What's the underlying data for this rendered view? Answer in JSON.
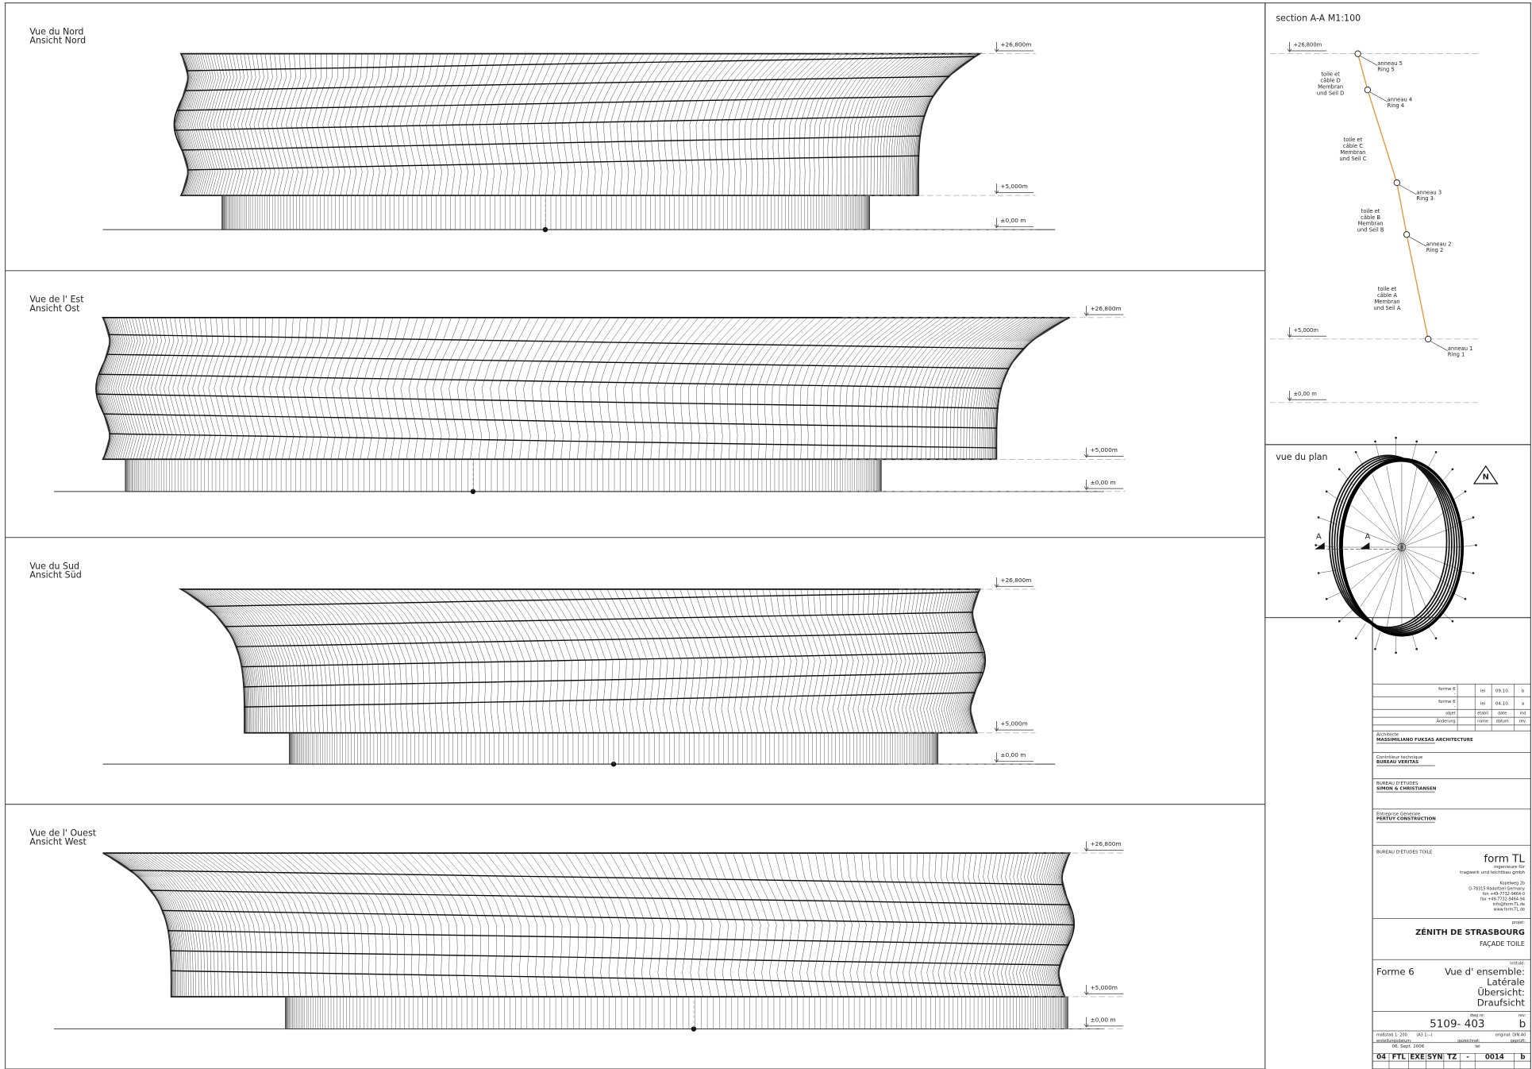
{
  "views": [
    {
      "title_fr": "Vue du Nord",
      "title_de": "Ansicht Nord",
      "levels": [
        "+26,800m",
        "+5,000m",
        "±0,00 m"
      ]
    },
    {
      "title_fr": "Vue de l' Est",
      "title_de": "Ansicht Ost",
      "levels": [
        "+26,800m",
        "+5,000m",
        "±0,00 m"
      ]
    },
    {
      "title_fr": "Vue du Sud",
      "title_de": "Ansicht Süd",
      "levels": [
        "+26,800m",
        "+5,000m",
        "±0,00 m"
      ]
    },
    {
      "title_fr": "Vue de l' Ouest",
      "title_de": "Ansicht West",
      "levels": [
        "+26,800m",
        "+5,000m",
        "±0,00 m"
      ]
    }
  ],
  "section": {
    "title": "section A-A M1:100",
    "levels": [
      "+26,800m",
      "+5,000m",
      "±0,00 m"
    ],
    "rings": [
      {
        "fr": "anneau 5",
        "de": "Ring 5"
      },
      {
        "fr": "anneau 4",
        "de": "Ring 4"
      },
      {
        "fr": "anneau 3",
        "de": "Ring 3"
      },
      {
        "fr": "anneau 2",
        "de": "Ring 2"
      },
      {
        "fr": "anneau 1",
        "de": "Ring 1"
      }
    ],
    "membranes": [
      [
        "toile et",
        "câble D",
        "Membran",
        "und Seil D"
      ],
      [
        "toile et",
        "câble C",
        "Membran",
        "und Seil C"
      ],
      [
        "toile et",
        "câble B",
        "Membran",
        "und Seil B"
      ],
      [
        "toile et",
        "câble A",
        "Membran",
        "und Seil A"
      ]
    ]
  },
  "plan": {
    "title": "vue du plan",
    "section_marks": [
      "A",
      "A"
    ],
    "north": "N"
  },
  "title_block": {
    "revisions": [
      [
        "forme 6",
        "-",
        "lei",
        "09.10.",
        "b"
      ],
      [
        "forme 6",
        "-",
        "lei",
        "04.10.",
        "a"
      ]
    ],
    "revision_headers": [
      [
        "objet",
        "établi",
        "date",
        "ind"
      ],
      [
        "Änderung",
        "name",
        "datum",
        "rev."
      ]
    ],
    "parties": [
      {
        "role": "Architecte",
        "name": "MASSIMILIANO FUKSAS ARCHITECTURE"
      },
      {
        "role": "Contrôleur technique",
        "name": "BUREAU VERITAS"
      },
      {
        "role": "BUREAU D'ÉTUDES",
        "name": "SIMON & CHRISTIANSEN"
      },
      {
        "role": "Entreprise Générale",
        "name": "PERTUY CONSTRUCTION"
      }
    ],
    "membrane_engineer": {
      "role": "BUREAU D'ÉTUDES TOILE",
      "logo": "form TL",
      "lines": [
        "ingenieure für",
        "tragwerk und leichtbau gmbh"
      ],
      "address": [
        "Kopelweg 2b",
        "D-78315 Radolfzell Germany",
        "fon +49-7732-9464-0",
        "fax +49-7732-9464-94",
        "info@form-TL.de",
        "www.form-TL.de"
      ]
    },
    "project_label": "projet:",
    "project": "ZÉNITH DE STRASBOURG",
    "subject": "FAÇADE TOILE",
    "title_label": "intitulé:",
    "form": "Forme 6",
    "title_lines": [
      "Vue d' ensemble:",
      "Latérale",
      "Übersicht:",
      "Draufsicht"
    ],
    "drawing_label": "dwg nr:",
    "drawing_number": "5109- 403",
    "rev_label": "rev:",
    "rev": "b",
    "scale": "maßstab 1: 200",
    "scale_a3": "(A3 1:--)",
    "original": "original: DIN A0",
    "date_label": "erstellungsdatum:",
    "date": "06. Sept. 2006",
    "drawn_label": "gezeichnet:",
    "drawn": "lei",
    "checked_label": "geprüft:",
    "code": [
      "04",
      "FTL",
      "EXE",
      "SYN",
      "TZ",
      "-",
      "0014",
      "b"
    ]
  }
}
